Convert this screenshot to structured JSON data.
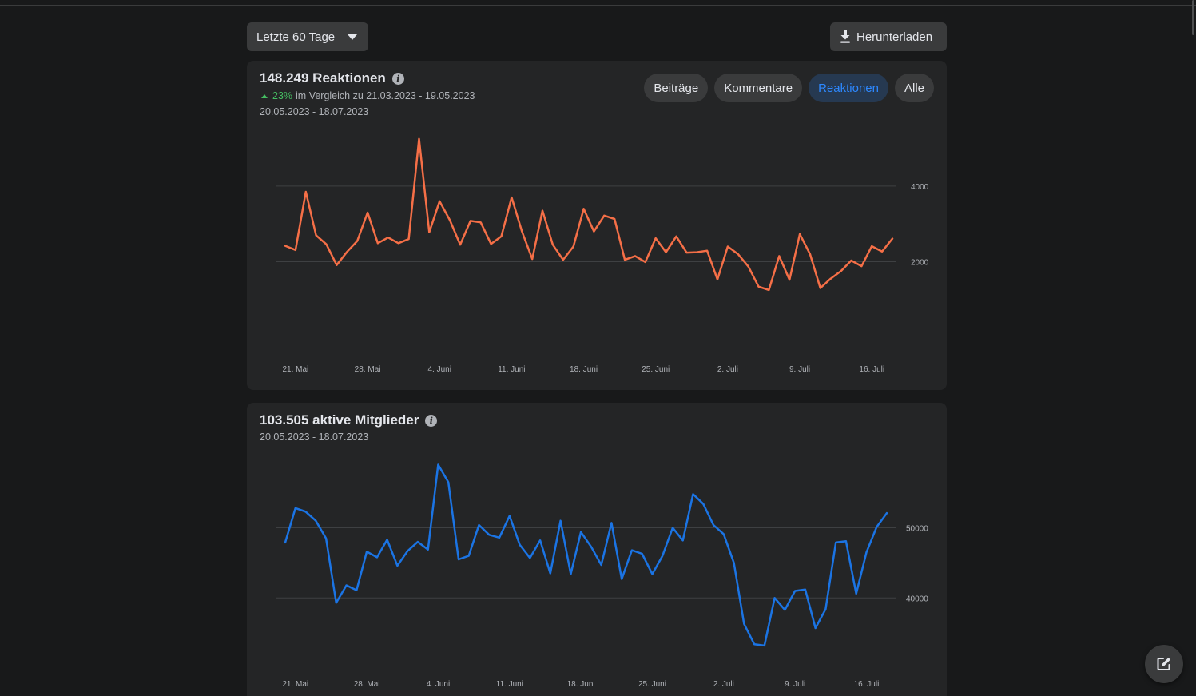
{
  "toolbar": {
    "range_label": "Letzte 60 Tage",
    "download_label": "Herunterladen"
  },
  "reactions_card": {
    "title": "148.249 Reaktionen",
    "change_pct": "23%",
    "compare_text": "im Vergleich zu 21.03.2023 - 19.05.2023",
    "date_range": "20.05.2023 - 18.07.2023",
    "filters": [
      {
        "label": "Beiträge",
        "active": false
      },
      {
        "label": "Kommentare",
        "active": false
      },
      {
        "label": "Reaktionen",
        "active": true
      },
      {
        "label": "Alle",
        "active": false
      }
    ]
  },
  "members_card": {
    "title": "103.505 aktive Mitglieder",
    "date_range": "20.05.2023 - 18.07.2023"
  },
  "colors": {
    "reactions_line": "#f56f47",
    "members_line": "#1b74e4",
    "accent": "#2d88ff",
    "positive": "#45bd62"
  },
  "icons": {
    "range_caret": "caret-down-icon",
    "download": "download-icon",
    "info": "info-icon",
    "compose": "compose-icon"
  },
  "chart_data": [
    {
      "type": "line",
      "title": "148.249 Reaktionen",
      "xlabels": [
        "21. Mai",
        "28. Mai",
        "4. Juni",
        "11. Juni",
        "18. Juni",
        "25. Juni",
        "2. Juli",
        "9. Juli",
        "16. Juli"
      ],
      "x": [
        "20.05.2023",
        "21.05.2023",
        "22.05.2023",
        "23.05.2023",
        "24.05.2023",
        "25.05.2023",
        "26.05.2023",
        "27.05.2023",
        "28.05.2023",
        "29.05.2023",
        "30.05.2023",
        "31.05.2023",
        "01.06.2023",
        "02.06.2023",
        "03.06.2023",
        "04.06.2023",
        "05.06.2023",
        "06.06.2023",
        "07.06.2023",
        "08.06.2023",
        "09.06.2023",
        "10.06.2023",
        "11.06.2023",
        "12.06.2023",
        "13.06.2023",
        "14.06.2023",
        "15.06.2023",
        "16.06.2023",
        "17.06.2023",
        "18.06.2023",
        "19.06.2023",
        "20.06.2023",
        "21.06.2023",
        "22.06.2023",
        "23.06.2023",
        "24.06.2023",
        "25.06.2023",
        "26.06.2023",
        "27.06.2023",
        "28.06.2023",
        "29.06.2023",
        "30.06.2023",
        "01.07.2023",
        "02.07.2023",
        "03.07.2023",
        "04.07.2023",
        "05.07.2023",
        "06.07.2023",
        "07.07.2023",
        "08.07.2023",
        "09.07.2023",
        "10.07.2023",
        "11.07.2023",
        "12.07.2023",
        "13.07.2023",
        "14.07.2023",
        "15.07.2023",
        "16.07.2023",
        "17.07.2023",
        "18.07.2023"
      ],
      "series": [
        {
          "values": [
            2420,
            2310,
            3850,
            2700,
            2460,
            1910,
            2260,
            2550,
            3300,
            2490,
            2640,
            2490,
            2600,
            5250,
            2780,
            3600,
            3100,
            2450,
            3080,
            3040,
            2470,
            2670,
            3700,
            2800,
            2070,
            3350,
            2450,
            2050,
            2400,
            3400,
            2800,
            3220,
            3130,
            2050,
            2150,
            1990,
            2620,
            2250,
            2670,
            2240,
            2250,
            2290,
            1530,
            2400,
            2200,
            1870,
            1340,
            1250,
            2150,
            1520,
            2730,
            2200,
            1300,
            1550,
            1750,
            2030,
            1880,
            2410,
            2270,
            2610
          ]
        }
      ],
      "yticks": [
        2000,
        4000
      ],
      "ylim": [
        0,
        5500
      ],
      "grid": true
    },
    {
      "type": "line",
      "title": "103.505 aktive Mitglieder",
      "xlabels": [
        "21. Mai",
        "28. Mai",
        "4. Juni",
        "11. Juni",
        "18. Juni",
        "25. Juni",
        "2. Juli",
        "9. Juli",
        "16. Juli"
      ],
      "x": [
        "20.05.2023",
        "21.05.2023",
        "22.05.2023",
        "23.05.2023",
        "24.05.2023",
        "25.05.2023",
        "26.05.2023",
        "27.05.2023",
        "28.05.2023",
        "29.05.2023",
        "30.05.2023",
        "31.05.2023",
        "01.06.2023",
        "02.06.2023",
        "03.06.2023",
        "04.06.2023",
        "05.06.2023",
        "06.06.2023",
        "07.06.2023",
        "08.06.2023",
        "09.06.2023",
        "10.06.2023",
        "11.06.2023",
        "12.06.2023",
        "13.06.2023",
        "14.06.2023",
        "15.06.2023",
        "16.06.2023",
        "17.06.2023",
        "18.06.2023",
        "19.06.2023",
        "20.06.2023",
        "21.06.2023",
        "22.06.2023",
        "23.06.2023",
        "24.06.2023",
        "25.06.2023",
        "26.06.2023",
        "27.06.2023",
        "28.06.2023",
        "29.06.2023",
        "30.06.2023",
        "01.07.2023",
        "02.07.2023",
        "03.07.2023",
        "04.07.2023",
        "05.07.2023",
        "06.07.2023",
        "07.07.2023",
        "08.07.2023",
        "09.07.2023",
        "10.07.2023",
        "11.07.2023",
        "12.07.2023",
        "13.07.2023",
        "14.07.2023",
        "15.07.2023",
        "16.07.2023",
        "17.07.2023",
        "18.07.2023"
      ],
      "series": [
        {
          "values": [
            47900,
            52800,
            52300,
            51000,
            48500,
            39300,
            41800,
            41100,
            46600,
            45800,
            48300,
            44600,
            46700,
            48000,
            46900,
            59000,
            56500,
            45500,
            46000,
            50400,
            49000,
            48600,
            51700,
            47600,
            45700,
            48200,
            43500,
            51000,
            43400,
            49400,
            47300,
            44700,
            50700,
            42700,
            46800,
            46300,
            43400,
            46000,
            50000,
            48200,
            54800,
            53400,
            50400,
            49100,
            45000,
            36300,
            33400,
            33200,
            40000,
            38300,
            41000,
            41200,
            35700,
            38400,
            47900,
            48100,
            40600,
            46500,
            50100,
            52100
          ]
        }
      ],
      "yticks": [
        40000,
        50000
      ],
      "ylim": [
        30000,
        61000
      ],
      "grid": true
    }
  ]
}
